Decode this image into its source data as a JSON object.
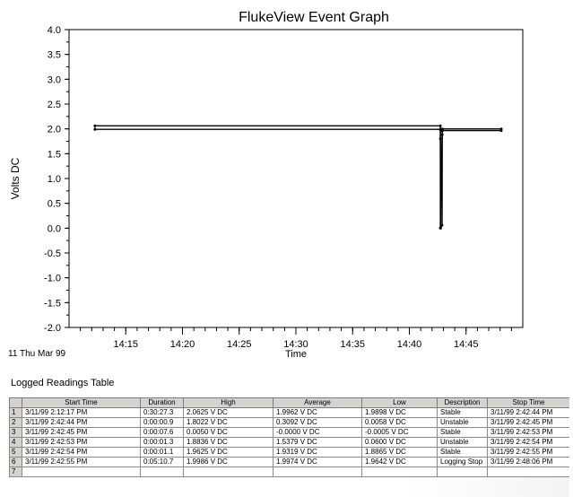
{
  "chart_data": {
    "type": "line",
    "title": "FlukeView Event Graph",
    "ylabel": "Volts DC",
    "xlabel": "Time",
    "x_sublabel": "11 Thu Mar 99",
    "ylim": [
      -2.0,
      4.0
    ],
    "y_ticks": [
      4.0,
      3.5,
      3.0,
      2.5,
      2.0,
      1.5,
      1.0,
      0.5,
      0.0,
      -0.5,
      -1.0,
      -1.5,
      -2.0
    ],
    "y_tick_labels": [
      "4.0",
      "3.5",
      "3.0",
      "2.5",
      "2.0",
      "1.5",
      "1.0",
      "0.5",
      "0.0",
      "-0.5",
      "-1.0",
      "-1.5",
      "-2.0"
    ],
    "xlim": [
      "14:10",
      "14:50"
    ],
    "x_ticks": [
      "14:15",
      "14:20",
      "14:25",
      "14:30",
      "14:35",
      "14:40",
      "14:45"
    ],
    "grid": false,
    "series": [
      {
        "points": [
          {
            "x": "14:12:17",
            "low": 1.9898,
            "high": 2.0625
          },
          {
            "x": "14:42:44",
            "low": 1.9898,
            "high": 2.0625
          },
          {
            "x": "14:42:44",
            "low": 0.0058,
            "high": 1.8022
          },
          {
            "x": "14:42:45",
            "low": -0.0005,
            "high": 0.005
          },
          {
            "x": "14:42:53",
            "low": 0.06,
            "high": 1.8836
          },
          {
            "x": "14:42:54",
            "low": 1.8865,
            "high": 1.9625
          },
          {
            "x": "14:42:55",
            "low": 1.9642,
            "high": 1.9986
          },
          {
            "x": "14:48:06",
            "low": 1.9642,
            "high": 1.9986
          }
        ]
      }
    ]
  },
  "table": {
    "title": "Logged Readings Table",
    "columns": [
      "Start Time",
      "Duration",
      "High",
      "Average",
      "Low",
      "Description",
      "Stop Time"
    ],
    "rows": [
      {
        "n": "1",
        "cells": [
          "3/11/99 2:12:17 PM",
          "0:30:27.3",
          "2.0625 V DC",
          "1.9962 V DC",
          "1.9898 V DC",
          "Stable",
          "3/11/99 2:42:44 PM"
        ]
      },
      {
        "n": "2",
        "cells": [
          "3/11/99 2:42:44 PM",
          "0:00:00.9",
          "1.8022 V DC",
          "0.3092 V DC",
          "0.0058 V DC",
          "Unstable",
          "3/11/99 2:42:45 PM"
        ]
      },
      {
        "n": "3",
        "cells": [
          "3/11/99 2:42:45 PM",
          "0:00:07.6",
          "0.0050 V DC",
          "-0.0000 V DC",
          "-0.0005 V DC",
          "Stable",
          "3/11/99 2:42:53 PM"
        ]
      },
      {
        "n": "4",
        "cells": [
          "3/11/99 2:42:53 PM",
          "0:00:01.3",
          "1.8836 V DC",
          "1.5379 V DC",
          "0.0600 V DC",
          "Unstable",
          "3/11/99 2:42:54 PM"
        ]
      },
      {
        "n": "5",
        "cells": [
          "3/11/99 2:42:54 PM",
          "0:00:01.1",
          "1.9625 V DC",
          "1.9319 V DC",
          "1.8865 V DC",
          "Stable",
          "3/11/99 2:42:55 PM"
        ]
      },
      {
        "n": "6",
        "cells": [
          "3/11/99 2:42:55 PM",
          "0:05:10.7",
          "1.9986 V DC",
          "1.9974 V DC",
          "1.9642 V DC",
          "Logging Stop",
          "3/11/99 2:48:06 PM"
        ]
      },
      {
        "n": "7",
        "cells": [
          "",
          "",
          "",
          "",
          "",
          "",
          ""
        ]
      }
    ]
  },
  "colors": {
    "trace": "#000000",
    "plot_border": "#000000",
    "header_bg": "#d6d3ce",
    "grid_line": "#8a8a8a"
  }
}
